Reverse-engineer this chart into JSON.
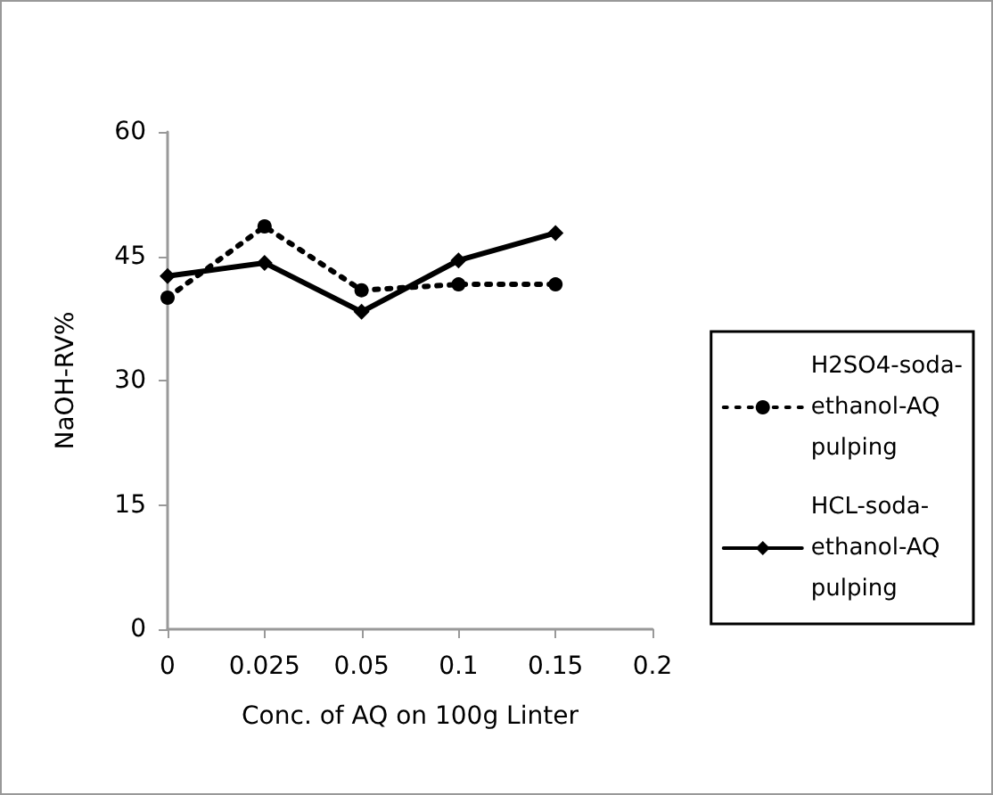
{
  "chart_data": {
    "type": "line",
    "xlabel": "Conc. of AQ on 100g Linter",
    "ylabel": "NaOH-RV%",
    "categories": [
      "0",
      "0.025",
      "0.05",
      "0.1",
      "0.15",
      "0.2"
    ],
    "series": [
      {
        "name": "H2SO4-soda-ethanol-AQ pulping",
        "color": "#000000",
        "line_style": "dotted",
        "marker": "circle",
        "values": [
          40.0,
          48.6,
          40.9,
          41.6,
          41.6,
          null
        ]
      },
      {
        "name": "HCL-soda-ethanol-AQ pulping",
        "color": "#000000",
        "line_style": "solid",
        "marker": "diamond",
        "values": [
          42.6,
          44.2,
          38.3,
          44.5,
          47.8,
          null
        ]
      }
    ],
    "ylim": [
      0,
      60
    ],
    "yticks": [
      0,
      15,
      30,
      45,
      60
    ],
    "grid": false,
    "legend": "right"
  }
}
